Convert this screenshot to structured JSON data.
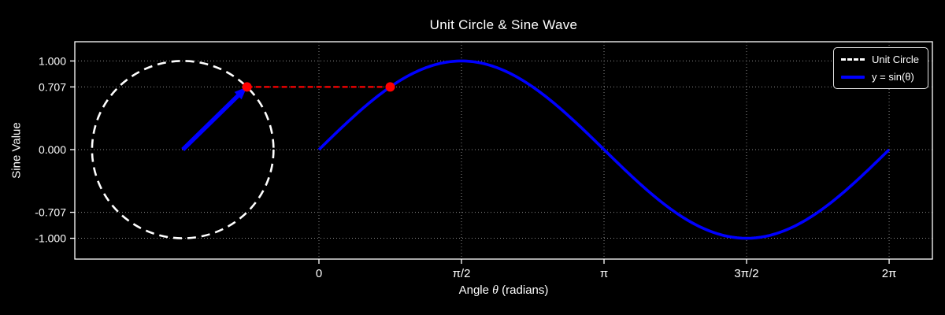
{
  "chart_data": {
    "type": "line",
    "title": "Unit Circle & Sine Wave",
    "xlabel": {
      "prefix": "Angle ",
      "symbol": "θ",
      "suffix": " (radians)"
    },
    "ylabel": "Sine Value",
    "xlim": [
      -2.69,
      6.76
    ],
    "ylim": [
      -1.235,
      1.217
    ],
    "grid": true,
    "x_ticks": [
      {
        "value": 0,
        "label": "0"
      },
      {
        "value": 1.5708,
        "label": "π/2"
      },
      {
        "value": 3.1416,
        "label": "π"
      },
      {
        "value": 4.7124,
        "label": "3π/2"
      },
      {
        "value": 6.2832,
        "label": "2π"
      }
    ],
    "y_ticks": [
      {
        "value": 1,
        "label": "1.000"
      },
      {
        "value": 0.7071,
        "label": "0.707"
      },
      {
        "value": 0,
        "label": "0.000"
      },
      {
        "value": -0.7071,
        "label": "-0.707"
      },
      {
        "value": -1,
        "label": "-1.000"
      }
    ],
    "series": [
      {
        "name": "Unit Circle",
        "kind": "circle",
        "center": [
          -1.5,
          0
        ],
        "radius": 1,
        "color": "#ffffff",
        "linestyle": "dashed"
      },
      {
        "name": "y = sin(θ)",
        "kind": "function",
        "function": "sin",
        "x_range": [
          0,
          6.2832
        ],
        "amplitude": 1,
        "color": "#0000ff",
        "key_points": {
          "x": [
            0,
            1.5708,
            3.1416,
            4.7124,
            6.2832
          ],
          "y": [
            0,
            1,
            0,
            -1,
            0
          ]
        }
      }
    ],
    "annotation": {
      "theta": 0.7854,
      "sin_value": 0.7071,
      "circle_point": [
        -0.7929,
        0.7071
      ],
      "curve_point": [
        0.7854,
        0.7071
      ],
      "radius_arrow_color": "#0000ff",
      "connector_color": "#ff0000",
      "connector_style": "dashed",
      "point_color": "#ff0000"
    },
    "legend": {
      "position": "upper right",
      "entries": [
        {
          "label": "Unit Circle",
          "style": "dashed",
          "color": "#ffffff"
        },
        {
          "label": "y = sin(θ)",
          "style": "solid",
          "color": "#0000ff"
        }
      ]
    },
    "colors": {
      "background": "#000000",
      "foreground": "#ffffff",
      "grid": "#8a8a8a",
      "spine": "#ffffff"
    }
  }
}
